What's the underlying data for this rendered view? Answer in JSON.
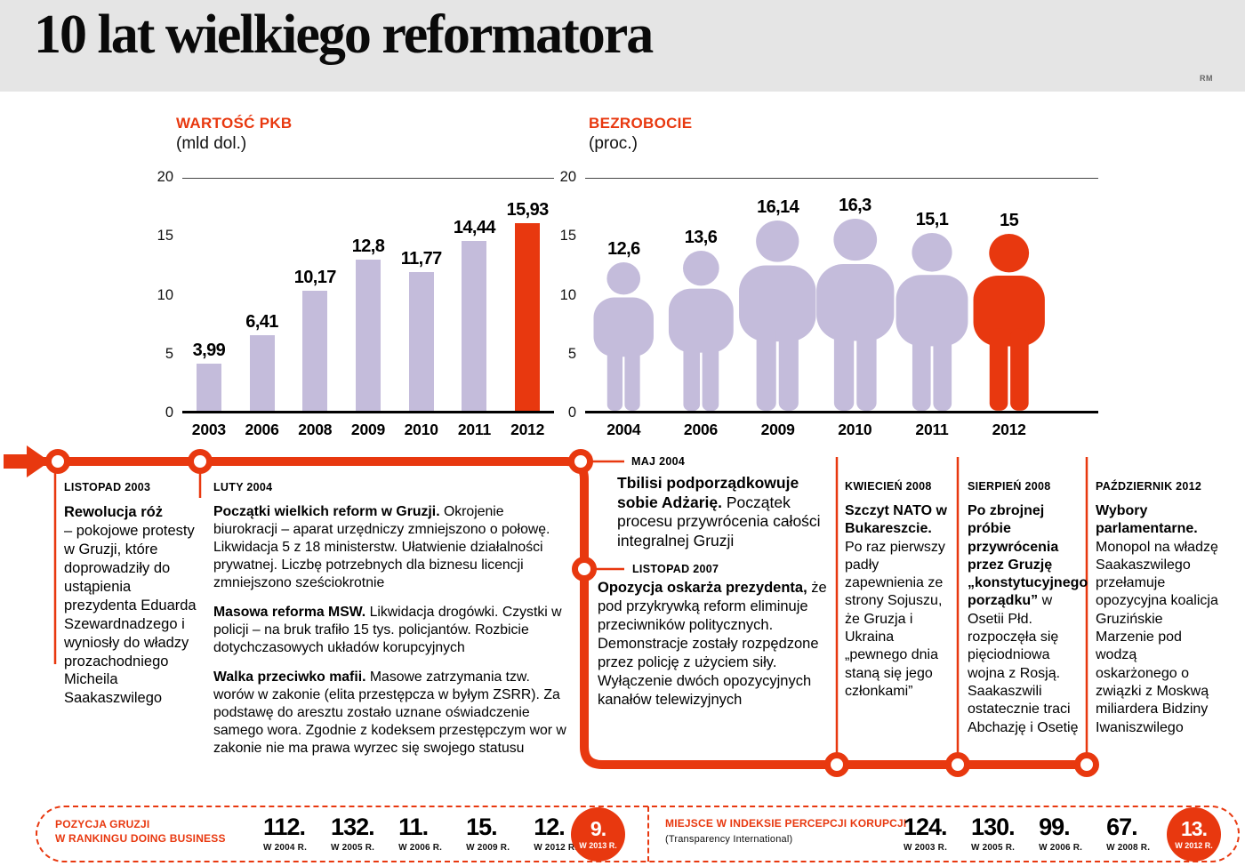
{
  "header": {
    "title": "10 lat wielkiego reformatora",
    "credit": "RM"
  },
  "colors": {
    "accent": "#e8380f",
    "bar_fill": "#c4bcdb",
    "header_bg": "#e5e5e5"
  },
  "chart_data": [
    {
      "type": "bar",
      "title": "WARTOŚĆ PKB",
      "subtitle": "(mld dol.)",
      "categories": [
        "2003",
        "2006",
        "2008",
        "2009",
        "2010",
        "2011",
        "2012"
      ],
      "values": [
        3.99,
        6.41,
        10.17,
        12.8,
        11.77,
        14.44,
        15.93
      ],
      "labels": [
        "3,99",
        "6,41",
        "10,17",
        "12,8",
        "11,77",
        "14,44",
        "15,93"
      ],
      "ylim": [
        0,
        20
      ],
      "yticks": [
        0,
        5,
        10,
        15,
        20
      ],
      "highlight_index": 6
    },
    {
      "type": "bar",
      "subtype": "person-pictogram",
      "title": "BEZROBOCIE",
      "subtitle": "(proc.)",
      "categories": [
        "2004",
        "2006",
        "2009",
        "2010",
        "2011",
        "2012"
      ],
      "values": [
        12.6,
        13.6,
        16.14,
        16.3,
        15.1,
        15
      ],
      "labels": [
        "12,6",
        "13,6",
        "16,14",
        "16,3",
        "15,1",
        "15"
      ],
      "ylim": [
        0,
        20
      ],
      "yticks": [
        0,
        5,
        10,
        15,
        20
      ],
      "highlight_index": 5
    }
  ],
  "timeline": {
    "events": [
      {
        "date": "LISTOPAD 2003",
        "lead": "Rewolucja róż",
        "text": "– pokojowe protesty w Gruzji, które doprowadziły do ustąpienia prezydenta Eduarda Szewardnadzego i wyniosły do władzy prozachodniego Micheila Saakaszwilego"
      },
      {
        "date": "LUTY 2004",
        "paragraphs": [
          {
            "lead": "Początki wielkich reform w Gruzji.",
            "text": "Okrojenie biurokracji – aparat urzędniczy zmniejszono o połowę. Likwidacja 5 z 18 ministerstw. Ułatwienie działalności prywatnej. Liczbę potrzebnych dla biznesu licencji zmniejszono sześciokrotnie"
          },
          {
            "lead": "Masowa reforma MSW.",
            "text": "Likwidacja drogówki. Czystki w policji – na bruk trafiło 15 tys. policjantów. Rozbicie dotychczasowych układów korupcyjnych"
          },
          {
            "lead": "Walka przeciwko mafii.",
            "text": "Masowe zatrzymania tzw. worów w zakonie (elita przestępcza w byłym ZSRR). Za podstawę do aresztu zostało uznane oświadczenie samego wora. Zgodnie z kodeksem przestępczym wor w zakonie nie ma prawa wyrzec się swojego statusu"
          }
        ]
      },
      {
        "date": "MAJ 2004",
        "lead": "Tbilisi podporządkowuje sobie Adżarię.",
        "text": "Początek procesu przywrócenia całości integralnej Gruzji"
      },
      {
        "date": "LISTOPAD 2007",
        "lead": "Opozycja oskarża prezydenta,",
        "text": "że pod przykrywką reform eliminuje przeciwników politycznych. Demonstracje zostały rozpędzone przez policję z użyciem siły. Wyłączenie dwóch opozycyjnych kanałów telewizyjnych"
      },
      {
        "date": "KWIECIEŃ 2008",
        "lead": "Szczyt NATO w Bukareszcie.",
        "text": "Po raz pierwszy padły zapewnienia ze strony Sojuszu, że Gruzja i Ukraina „pewnego dnia staną się jego członkami”"
      },
      {
        "date": "SIERPIEŃ 2008",
        "lead": "Po zbrojnej próbie przywrócenia przez Gruzję „konstytucyjnego porządku”",
        "text": "w Osetii Płd. rozpoczęła się pięciodniowa wojna z Rosją. Saakaszwili ostatecznie traci Abchazję i Osetię"
      },
      {
        "date": "PAŹDZIERNIK 2012",
        "lead": "Wybory parlamentarne.",
        "text": "Monopol na władzę Saakaszwilego przełamuje opozycyjna koalicja Gruzińskie Marzenie pod wodzą oskarżonego o związki z Moskwą miliardera Bidziny Iwaniszwilego"
      }
    ]
  },
  "footer": {
    "doing_business": {
      "label_line1": "POZYCJA GRUZJI",
      "label_line2": "W RANKINGU DOING BUSINESS",
      "entries": [
        {
          "value": "112.",
          "year": "W 2004 R."
        },
        {
          "value": "132.",
          "year": "W 2005 R."
        },
        {
          "value": "11.",
          "year": "W 2006 R."
        },
        {
          "value": "15.",
          "year": "W 2009 R."
        },
        {
          "value": "12.",
          "year": "W 2012 R."
        }
      ],
      "highlight": {
        "value": "9.",
        "year": "W 2013 R."
      }
    },
    "corruption_index": {
      "label": "MIEJSCE W INDEKSIE PERCEPCJI KORUPCJI",
      "label_sub": "(Transparency International)",
      "entries": [
        {
          "value": "124.",
          "year": "W 2003 R."
        },
        {
          "value": "130.",
          "year": "W 2005 R."
        },
        {
          "value": "99.",
          "year": "W 2006 R."
        },
        {
          "value": "67.",
          "year": "W 2008 R."
        }
      ],
      "highlight": {
        "value": "13.",
        "year": "W 2012 R."
      }
    }
  }
}
